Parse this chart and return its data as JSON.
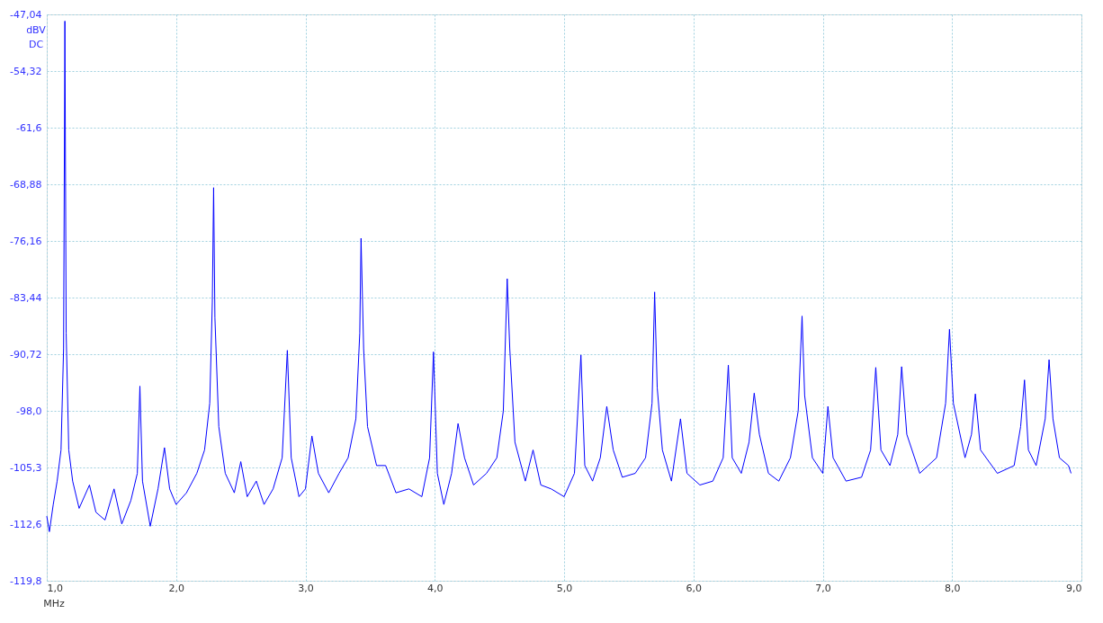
{
  "chart_data": {
    "type": "line",
    "xlabel": "MHz",
    "ylabel": "dBV",
    "annotations": [
      "DC"
    ],
    "xlim": [
      1.0,
      9.0
    ],
    "xticks": [
      {
        "value": 1,
        "label": "1,0"
      },
      {
        "value": 2,
        "label": "2,0"
      },
      {
        "value": 3,
        "label": "3,0"
      },
      {
        "value": 4,
        "label": "4,0"
      },
      {
        "value": 5,
        "label": "5,0"
      },
      {
        "value": 6,
        "label": "6,0"
      },
      {
        "value": 7,
        "label": "7,0"
      },
      {
        "value": 8,
        "label": "8,0"
      },
      {
        "value": 9,
        "label": "9,0"
      }
    ],
    "ylim": [
      -119.8,
      -47.04
    ],
    "yticks": [
      {
        "value": -119.8,
        "label": "-119,8"
      },
      {
        "value": -112.6,
        "label": "-112,6"
      },
      {
        "value": -105.3,
        "label": "-105,3"
      },
      {
        "value": -98.0,
        "label": "-98,0"
      },
      {
        "value": -90.72,
        "label": "-90,72"
      },
      {
        "value": -83.44,
        "label": "-83,44"
      },
      {
        "value": -76.16,
        "label": "-76,16"
      },
      {
        "value": -68.88,
        "label": "-68,88"
      },
      {
        "value": -61.6,
        "label": "-61,6"
      },
      {
        "value": -54.32,
        "label": "-54,32"
      },
      {
        "value": -47.04,
        "label": "-47,04"
      }
    ],
    "grid": true,
    "line_style": "solid",
    "series": [
      {
        "color": "#0000ff",
        "x": [
          1.0,
          1.02,
          1.05,
          1.08,
          1.11,
          1.13,
          1.14,
          1.15,
          1.17,
          1.2,
          1.25,
          1.33,
          1.38,
          1.45,
          1.52,
          1.58,
          1.65,
          1.7,
          1.72,
          1.74,
          1.8,
          1.86,
          1.91,
          1.95,
          2.0,
          2.08,
          2.16,
          2.22,
          2.26,
          2.28,
          2.29,
          2.3,
          2.33,
          2.38,
          2.45,
          2.5,
          2.55,
          2.62,
          2.68,
          2.75,
          2.82,
          2.86,
          2.89,
          2.95,
          3.0,
          3.05,
          3.1,
          3.18,
          3.26,
          3.33,
          3.39,
          3.42,
          3.43,
          3.45,
          3.48,
          3.55,
          3.62,
          3.7,
          3.8,
          3.9,
          3.96,
          3.99,
          4.02,
          4.07,
          4.13,
          4.18,
          4.23,
          4.3,
          4.4,
          4.48,
          4.53,
          4.56,
          4.58,
          4.62,
          4.7,
          4.76,
          4.82,
          4.9,
          5.0,
          5.08,
          5.13,
          5.16,
          5.22,
          5.28,
          5.33,
          5.38,
          5.45,
          5.55,
          5.63,
          5.68,
          5.7,
          5.72,
          5.76,
          5.83,
          5.9,
          5.95,
          6.05,
          6.15,
          6.23,
          6.27,
          6.3,
          6.37,
          6.43,
          6.47,
          6.51,
          6.58,
          6.66,
          6.75,
          6.81,
          6.84,
          6.86,
          6.92,
          7.0,
          7.04,
          7.08,
          7.18,
          7.3,
          7.37,
          7.41,
          7.45,
          7.52,
          7.58,
          7.61,
          7.65,
          7.75,
          7.88,
          7.95,
          7.98,
          8.01,
          8.1,
          8.15,
          8.18,
          8.22,
          8.35,
          8.48,
          8.53,
          8.56,
          8.59,
          8.65,
          8.72,
          8.75,
          8.78,
          8.83,
          8.9,
          8.92
        ],
        "values": [
          -111.5,
          -113.5,
          -110,
          -107,
          -103,
          -90,
          -47.9,
          -88,
          -103,
          -107,
          -110.5,
          -107.5,
          -111,
          -112,
          -108,
          -112.5,
          -109.5,
          -106,
          -94.8,
          -107,
          -112.8,
          -108,
          -102.7,
          -108,
          -110,
          -108.5,
          -106,
          -103,
          -97,
          -84,
          -69.3,
          -86,
          -100,
          -106,
          -108.5,
          -104.5,
          -109,
          -107,
          -110,
          -108,
          -104,
          -90.2,
          -104,
          -109,
          -108,
          -101.2,
          -106,
          -108.5,
          -106,
          -104,
          -99,
          -88,
          -75.8,
          -90,
          -100,
          -105,
          -105,
          -108.5,
          -108,
          -109,
          -104,
          -90.4,
          -106,
          -110,
          -106,
          -99.6,
          -104,
          -107.5,
          -106,
          -104,
          -98,
          -81.0,
          -90,
          -102,
          -107,
          -103,
          -107.5,
          -108,
          -109,
          -106,
          -90.8,
          -105,
          -107,
          -104,
          -97.4,
          -103,
          -106.5,
          -106,
          -104,
          -97,
          -82.7,
          -95,
          -103,
          -107,
          -99.0,
          -106,
          -107.5,
          -107,
          -104,
          -92.1,
          -104,
          -106,
          -102,
          -95.7,
          -101,
          -106,
          -107,
          -104,
          -98,
          -85.8,
          -96,
          -104,
          -106,
          -97.4,
          -104,
          -107,
          -106.5,
          -103,
          -92.4,
          -103,
          -105,
          -101,
          -92.3,
          -101,
          -106,
          -104,
          -97,
          -87.5,
          -97,
          -104,
          -101,
          -95.8,
          -103,
          -106,
          -105,
          -100,
          -94.0,
          -103,
          -105,
          -99,
          -91.4,
          -99,
          -104,
          -105,
          -106
        ]
      }
    ]
  }
}
